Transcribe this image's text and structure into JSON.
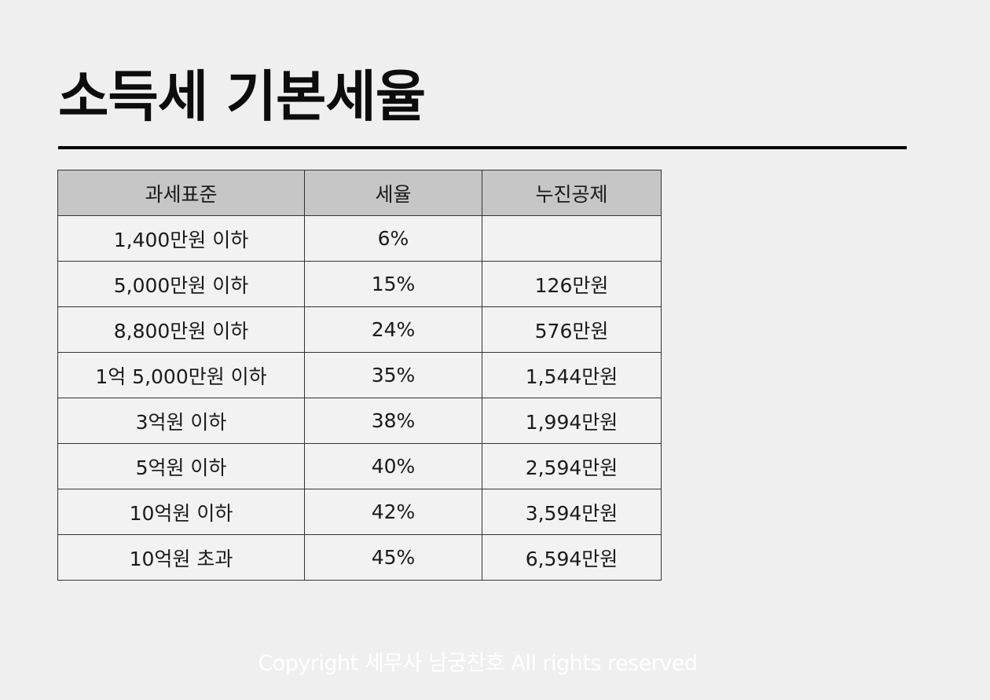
{
  "title": "소득세 기본세율",
  "table": {
    "headers": [
      "과세표준",
      "세율",
      "누진공제"
    ],
    "rows": [
      [
        "1,400만원 이하",
        "6%",
        ""
      ],
      [
        "5,000만원 이하",
        "15%",
        "126만원"
      ],
      [
        "8,800만원 이하",
        "24%",
        "576만원"
      ],
      [
        "1억 5,000만원 이하",
        "35%",
        "1,544만원"
      ],
      [
        "3억원 이하",
        "38%",
        "1,994만원"
      ],
      [
        "5억원 이하",
        "40%",
        "2,594만원"
      ],
      [
        "10억원 이하",
        "42%",
        "3,594만원"
      ],
      [
        "10억원 초과",
        "45%",
        "6,594만원"
      ]
    ]
  },
  "footer": "Copyright 세무사 남궁찬호 All rights reserved"
}
